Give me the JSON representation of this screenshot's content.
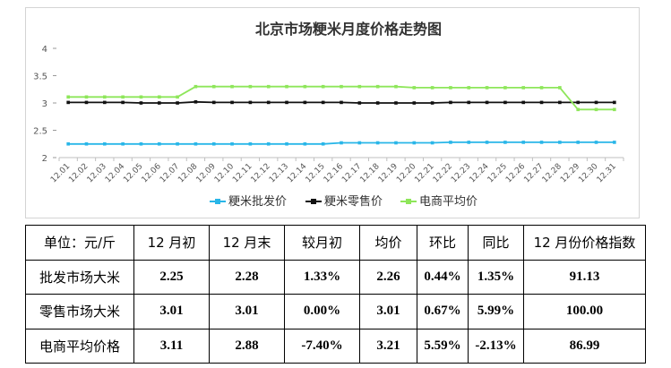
{
  "chart_data": {
    "type": "line",
    "title": "北京市场粳米月度价格走势图",
    "x": [
      "12.01",
      "12.02",
      "12.03",
      "12.04",
      "12.05",
      "12.06",
      "12.07",
      "12.08",
      "12.09",
      "12.10",
      "12.11",
      "12.12",
      "12.13",
      "12.14",
      "12.15",
      "12.16",
      "12.17",
      "12.18",
      "12.19",
      "12.20",
      "12.21",
      "12.22",
      "12.23",
      "12.24",
      "12.25",
      "12.26",
      "12.27",
      "12.28",
      "12.29",
      "12.30",
      "12.31"
    ],
    "yticks": [
      "2",
      "2.5",
      "3",
      "3.5",
      "4"
    ],
    "ylim": [
      2,
      4
    ],
    "legend_position": "bottom",
    "grid": false,
    "series": [
      {
        "name": "粳米批发价",
        "color": "#29b6e8",
        "values": [
          2.25,
          2.25,
          2.25,
          2.25,
          2.25,
          2.25,
          2.25,
          2.25,
          2.25,
          2.25,
          2.25,
          2.25,
          2.25,
          2.25,
          2.25,
          2.27,
          2.27,
          2.27,
          2.27,
          2.27,
          2.27,
          2.28,
          2.28,
          2.28,
          2.28,
          2.28,
          2.28,
          2.28,
          2.28,
          2.28,
          2.28
        ]
      },
      {
        "name": "粳米零售价",
        "color": "#111111",
        "values": [
          3.01,
          3.01,
          3.01,
          3.01,
          3.0,
          3.0,
          3.0,
          3.02,
          3.01,
          3.01,
          3.01,
          3.01,
          3.01,
          3.01,
          3.01,
          3.01,
          3.0,
          3.0,
          3.0,
          3.0,
          3.0,
          3.01,
          3.01,
          3.01,
          3.01,
          3.01,
          3.01,
          3.01,
          3.01,
          3.01,
          3.01
        ]
      },
      {
        "name": "电商平均价",
        "color": "#8ee65a",
        "values": [
          3.11,
          3.11,
          3.11,
          3.11,
          3.11,
          3.11,
          3.11,
          3.3,
          3.3,
          3.3,
          3.3,
          3.3,
          3.3,
          3.3,
          3.3,
          3.3,
          3.3,
          3.3,
          3.3,
          3.28,
          3.28,
          3.28,
          3.28,
          3.28,
          3.28,
          3.28,
          3.28,
          3.28,
          2.88,
          2.88,
          2.88
        ]
      }
    ]
  },
  "table": {
    "headers": [
      "单位：元/斤",
      "12 月初",
      "12 月末",
      "较月初",
      "均价",
      "环比",
      "同比",
      "12 月份价格指数"
    ],
    "rows": [
      {
        "label": "批发市场大米",
        "cells": [
          "2.25",
          "2.28",
          "1.33%",
          "2.26",
          "0.44%",
          "1.35%",
          "91.13"
        ]
      },
      {
        "label": "零售市场大米",
        "cells": [
          "3.01",
          "3.01",
          "0.00%",
          "3.01",
          "0.67%",
          "5.99%",
          "100.00"
        ]
      },
      {
        "label": "电商平均价格",
        "cells": [
          "3.11",
          "2.88",
          "-7.40%",
          "3.21",
          "5.59%",
          "-2.13%",
          "86.99"
        ]
      }
    ]
  }
}
